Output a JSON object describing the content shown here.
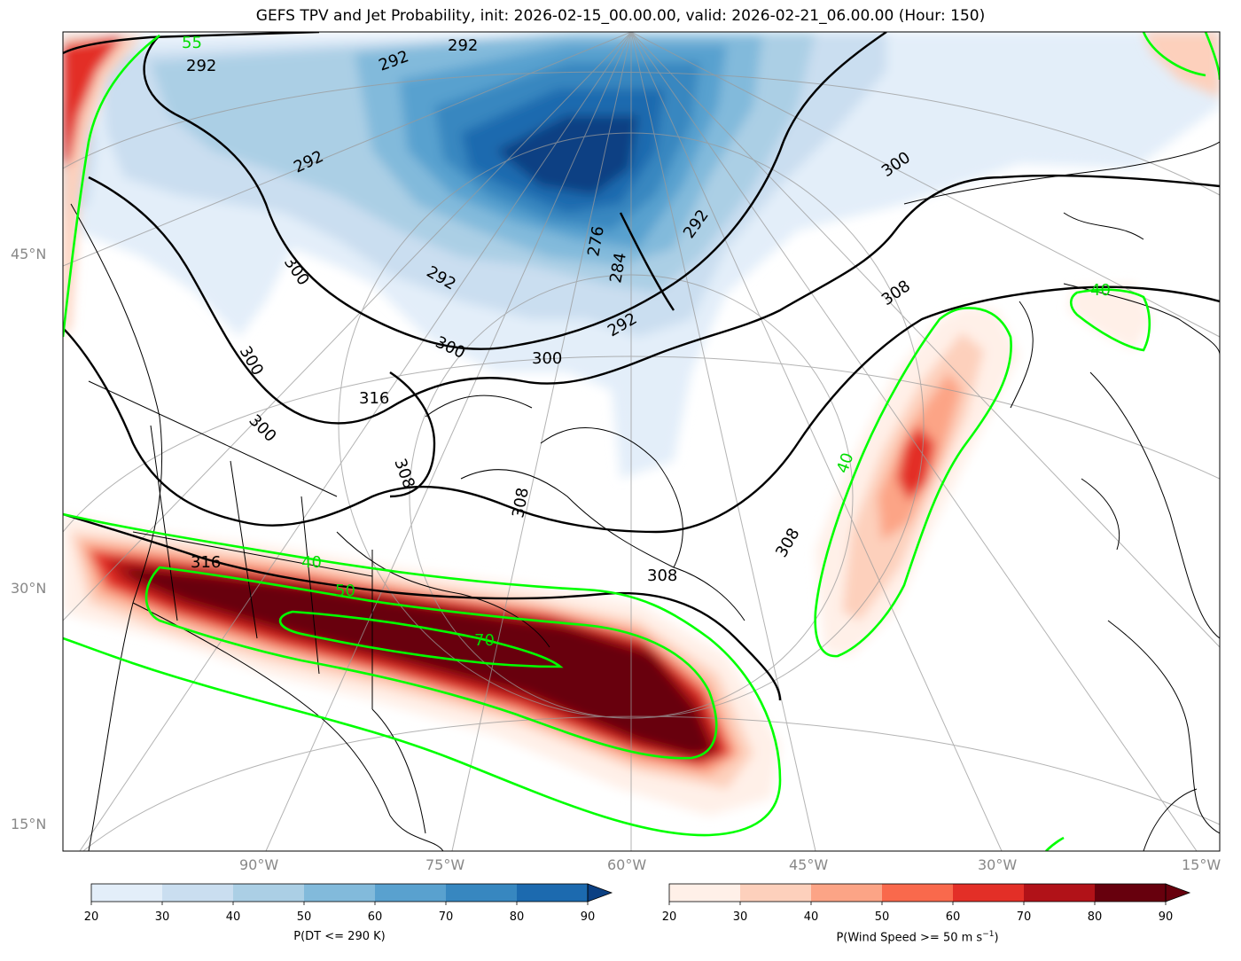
{
  "title": "GEFS TPV and Jet Probability, init: 2026-02-15_00.00.00, valid: 2026-02-21_06.00.00 (Hour: 150)",
  "lat_labels": [
    "45°N",
    "30°N",
    "15°N"
  ],
  "lon_labels": [
    "90°W",
    "75°W",
    "60°W",
    "45°W",
    "30°W",
    "15°W"
  ],
  "contour_labels_theta": [
    "292",
    "292",
    "292",
    "292",
    "292",
    "292",
    "292",
    "284",
    "276",
    "300",
    "300",
    "300",
    "300",
    "300",
    "300",
    "308",
    "308",
    "308",
    "308",
    "316",
    "316",
    "308"
  ],
  "contour_labels_jet": [
    "55",
    "40",
    "50",
    "70",
    "40",
    "40"
  ],
  "colorbar_left": {
    "label": "P(DT <= 290 K)",
    "ticks": [
      "20",
      "30",
      "40",
      "50",
      "60",
      "70",
      "80",
      "90"
    ],
    "colors": [
      "#e3eef9",
      "#cadef0",
      "#abcfe5",
      "#82badb",
      "#59a1cf",
      "#3787c0",
      "#1c6aaf",
      "#0b4083"
    ]
  },
  "colorbar_right": {
    "label": "P(Wind Speed >= 50 m s",
    "label_sup": "−1",
    "label_end": ")",
    "ticks": [
      "20",
      "30",
      "40",
      "50",
      "60",
      "70",
      "80",
      "90"
    ],
    "colors": [
      "#fff0e8",
      "#fdd0bc",
      "#fca486",
      "#f9694c",
      "#e32f27",
      "#b11218",
      "#67000d"
    ]
  }
}
